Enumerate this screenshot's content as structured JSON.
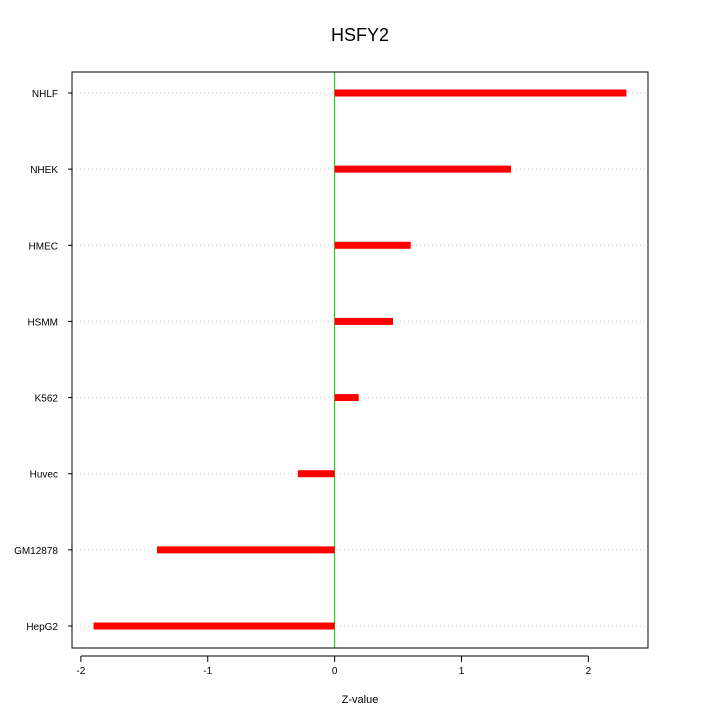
{
  "chart_data": {
    "type": "bar",
    "orientation": "horizontal",
    "title": "HSFY2",
    "xlabel": "Z-value",
    "ylabel": "",
    "categories": [
      "NHLF",
      "NHEK",
      "HMEC",
      "HSMM",
      "K562",
      "Huvec",
      "GM12878",
      "HepG2"
    ],
    "values": [
      2.3,
      1.39,
      0.6,
      0.46,
      0.19,
      -0.29,
      -1.4,
      -1.9
    ],
    "xlim": [
      -2.07,
      2.47
    ],
    "xticks": [
      -2,
      -1,
      0,
      1,
      2
    ],
    "xtick_labels": [
      "-2",
      "-1",
      "0",
      "1",
      "2"
    ],
    "grid": "horizontal dotted at each category",
    "reference_line": 0,
    "colors": {
      "bar": "#ff0000",
      "reference_line": "#00cc00",
      "grid": "#c8c8c8",
      "axis": "#000000"
    }
  }
}
